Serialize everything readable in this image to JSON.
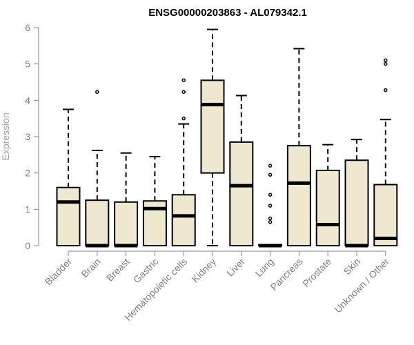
{
  "chart_data": {
    "type": "box",
    "title": "ENSG00000203863 - AL079342.1",
    "ylabel": "Expression",
    "xlabel": "",
    "ylim": [
      0,
      6
    ],
    "yticks": [
      0,
      1,
      2,
      3,
      4,
      5,
      6
    ],
    "box_fill": "#efe8d0",
    "categories": [
      "Bladder",
      "Brain",
      "Breast",
      "Gastric",
      "Hematopoietic cells",
      "Kidney",
      "Liver",
      "Lung",
      "Pancreas",
      "Prostate",
      "Skin",
      "Unknown / Other"
    ],
    "boxes": [
      {
        "min": 0,
        "q1": 0,
        "median": 1.2,
        "q3": 1.6,
        "max": 3.75,
        "outliers": []
      },
      {
        "min": 0,
        "q1": 0,
        "median": 0.0,
        "q3": 1.25,
        "max": 2.62,
        "outliers": [
          4.23
        ]
      },
      {
        "min": 0,
        "q1": 0,
        "median": 0.0,
        "q3": 1.2,
        "max": 2.55,
        "outliers": []
      },
      {
        "min": 0,
        "q1": 0,
        "median": 1.02,
        "q3": 1.23,
        "max": 2.45,
        "outliers": []
      },
      {
        "min": 0,
        "q1": 0,
        "median": 0.82,
        "q3": 1.4,
        "max": 3.35,
        "outliers": [
          3.5,
          4.23,
          4.55
        ]
      },
      {
        "min": 0,
        "q1": 2.0,
        "median": 3.88,
        "q3": 4.55,
        "max": 5.95,
        "outliers": []
      },
      {
        "min": 0,
        "q1": 0,
        "median": 1.65,
        "q3": 2.85,
        "max": 4.13,
        "outliers": []
      },
      {
        "min": 0,
        "q1": 0,
        "median": 0.0,
        "q3": 0.02,
        "max": 0.02,
        "outliers": [
          0.65,
          0.75,
          1.1,
          1.4,
          1.95,
          2.2
        ]
      },
      {
        "min": 0,
        "q1": 0,
        "median": 1.72,
        "q3": 2.75,
        "max": 5.42,
        "outliers": []
      },
      {
        "min": 0,
        "q1": 0,
        "median": 0.58,
        "q3": 2.07,
        "max": 2.78,
        "outliers": []
      },
      {
        "min": 0,
        "q1": 0,
        "median": 0.0,
        "q3": 2.35,
        "max": 2.92,
        "outliers": []
      },
      {
        "min": 0,
        "q1": 0,
        "median": 0.2,
        "q3": 1.68,
        "max": 3.47,
        "outliers": [
          4.28,
          5.0,
          5.1
        ]
      }
    ]
  }
}
